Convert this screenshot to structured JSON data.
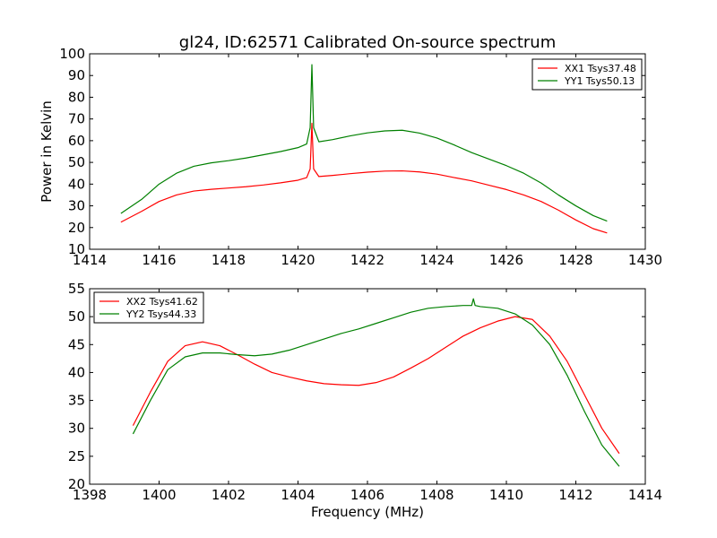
{
  "figure_title": "gl24, ID:62571 Calibrated On-source spectrum",
  "chart_data": [
    {
      "type": "line",
      "title": "gl24, ID:62571 Calibrated On-source spectrum",
      "xlabel": "",
      "ylabel": "Power in Kelvin",
      "xlim": [
        1414,
        1430
      ],
      "ylim": [
        10,
        100
      ],
      "xticks": [
        1414,
        1416,
        1418,
        1420,
        1422,
        1424,
        1426,
        1428,
        1430
      ],
      "yticks": [
        10,
        20,
        30,
        40,
        50,
        60,
        70,
        80,
        90,
        100
      ],
      "legend_position": "top-right",
      "grid": false,
      "series": [
        {
          "name": "XX1 Tsys37.48",
          "color": "#ff0000",
          "x": [
            1414.9,
            1415.5,
            1416.0,
            1416.5,
            1417.0,
            1417.5,
            1418.0,
            1418.5,
            1419.0,
            1419.5,
            1420.0,
            1420.25,
            1420.35,
            1420.4,
            1420.45,
            1420.6,
            1421.0,
            1421.5,
            1422.0,
            1422.5,
            1423.0,
            1423.5,
            1424.0,
            1424.5,
            1425.0,
            1425.5,
            1426.0,
            1426.5,
            1427.0,
            1427.5,
            1428.0,
            1428.5,
            1428.9
          ],
          "y": [
            22.5,
            27.5,
            32,
            35,
            36.8,
            37.6,
            38.2,
            38.8,
            39.6,
            40.6,
            41.8,
            43,
            47,
            68,
            47,
            43.5,
            44,
            44.8,
            45.5,
            46,
            46.1,
            45.6,
            44.6,
            43,
            41.5,
            39.5,
            37.5,
            35,
            32,
            28,
            23.5,
            19.5,
            17.5
          ]
        },
        {
          "name": "YY1 Tsys50.13",
          "color": "#008000",
          "x": [
            1414.9,
            1415.5,
            1416.0,
            1416.5,
            1417.0,
            1417.5,
            1418.0,
            1418.5,
            1419.0,
            1419.5,
            1420.0,
            1420.25,
            1420.35,
            1420.4,
            1420.45,
            1420.6,
            1421.0,
            1421.5,
            1422.0,
            1422.5,
            1423.0,
            1423.5,
            1424.0,
            1424.5,
            1425.0,
            1425.5,
            1426.0,
            1426.5,
            1427.0,
            1427.5,
            1428.0,
            1428.5,
            1428.9
          ],
          "y": [
            26.5,
            33,
            40,
            45,
            48.2,
            49.8,
            50.8,
            52,
            53.5,
            55,
            56.8,
            58.5,
            66,
            95,
            66,
            59.5,
            60.5,
            62.2,
            63.6,
            64.5,
            64.8,
            63.5,
            61.2,
            58,
            54.5,
            51.5,
            48.5,
            45,
            40.5,
            35,
            30,
            25.5,
            23
          ]
        }
      ]
    },
    {
      "type": "line",
      "title": "",
      "xlabel": "Frequency (MHz)",
      "ylabel": "",
      "xlim": [
        1398,
        1414
      ],
      "ylim": [
        20,
        55
      ],
      "xticks": [
        1398,
        1400,
        1402,
        1404,
        1406,
        1408,
        1410,
        1412,
        1414
      ],
      "yticks": [
        20,
        25,
        30,
        35,
        40,
        45,
        50,
        55
      ],
      "legend_position": "top-left",
      "grid": false,
      "series": [
        {
          "name": "XX2 Tsys41.62",
          "color": "#ff0000",
          "x": [
            1399.25,
            1399.75,
            1400.25,
            1400.75,
            1401.25,
            1401.75,
            1402.25,
            1402.75,
            1403.25,
            1403.75,
            1404.25,
            1404.75,
            1405.25,
            1405.75,
            1406.25,
            1406.75,
            1407.25,
            1407.75,
            1408.25,
            1408.75,
            1409.25,
            1409.75,
            1410.25,
            1410.75,
            1411.25,
            1411.75,
            1412.25,
            1412.75,
            1413.25
          ],
          "y": [
            30.5,
            36.5,
            42,
            44.8,
            45.5,
            44.8,
            43.2,
            41.5,
            40,
            39.2,
            38.5,
            38,
            37.8,
            37.7,
            38.2,
            39.2,
            40.8,
            42.5,
            44.5,
            46.5,
            48,
            49.2,
            50,
            49.5,
            46.5,
            42,
            36,
            30,
            25.5
          ]
        },
        {
          "name": "YY2 Tsys44.33",
          "color": "#008000",
          "x": [
            1399.25,
            1399.75,
            1400.25,
            1400.75,
            1401.25,
            1401.75,
            1402.25,
            1402.75,
            1403.25,
            1403.75,
            1404.25,
            1404.75,
            1405.25,
            1405.75,
            1406.25,
            1406.75,
            1407.25,
            1407.75,
            1408.25,
            1408.75,
            1409.0,
            1409.05,
            1409.1,
            1409.25,
            1409.75,
            1410.25,
            1410.75,
            1411.25,
            1411.75,
            1412.25,
            1412.75,
            1413.25
          ],
          "y": [
            29,
            35,
            40.5,
            42.8,
            43.5,
            43.5,
            43.2,
            43,
            43.3,
            44,
            45,
            46,
            47,
            47.8,
            48.8,
            49.8,
            50.8,
            51.5,
            51.8,
            52,
            52,
            53.2,
            52,
            51.8,
            51.5,
            50.5,
            48.5,
            45,
            39.5,
            33,
            27,
            23.2
          ]
        }
      ]
    }
  ]
}
